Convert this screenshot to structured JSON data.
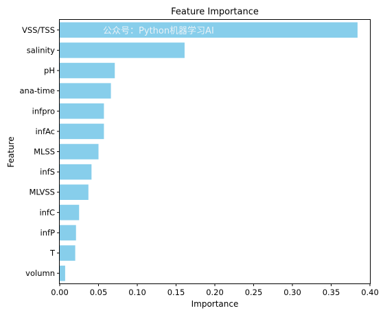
{
  "chart_data": {
    "type": "bar",
    "orientation": "horizontal",
    "title": "Feature Importance",
    "xlabel": "Importance",
    "ylabel": "Feature",
    "categories": [
      "VSS/TSS",
      "salinity",
      "pH",
      "ana-time",
      "infpro",
      "infAc",
      "MLSS",
      "infS",
      "MLVSS",
      "infC",
      "infP",
      "T",
      "volumn"
    ],
    "values": [
      0.384,
      0.161,
      0.071,
      0.066,
      0.057,
      0.057,
      0.05,
      0.041,
      0.037,
      0.025,
      0.021,
      0.02,
      0.007
    ],
    "xlim": [
      0.0,
      0.4
    ],
    "xticks": [
      "0.00",
      "0.05",
      "0.10",
      "0.15",
      "0.20",
      "0.25",
      "0.30",
      "0.35",
      "0.40"
    ],
    "grid": false,
    "legend": "none",
    "bar_color": "#87CEEB"
  },
  "watermark": "公众号：Python机器学习AI"
}
